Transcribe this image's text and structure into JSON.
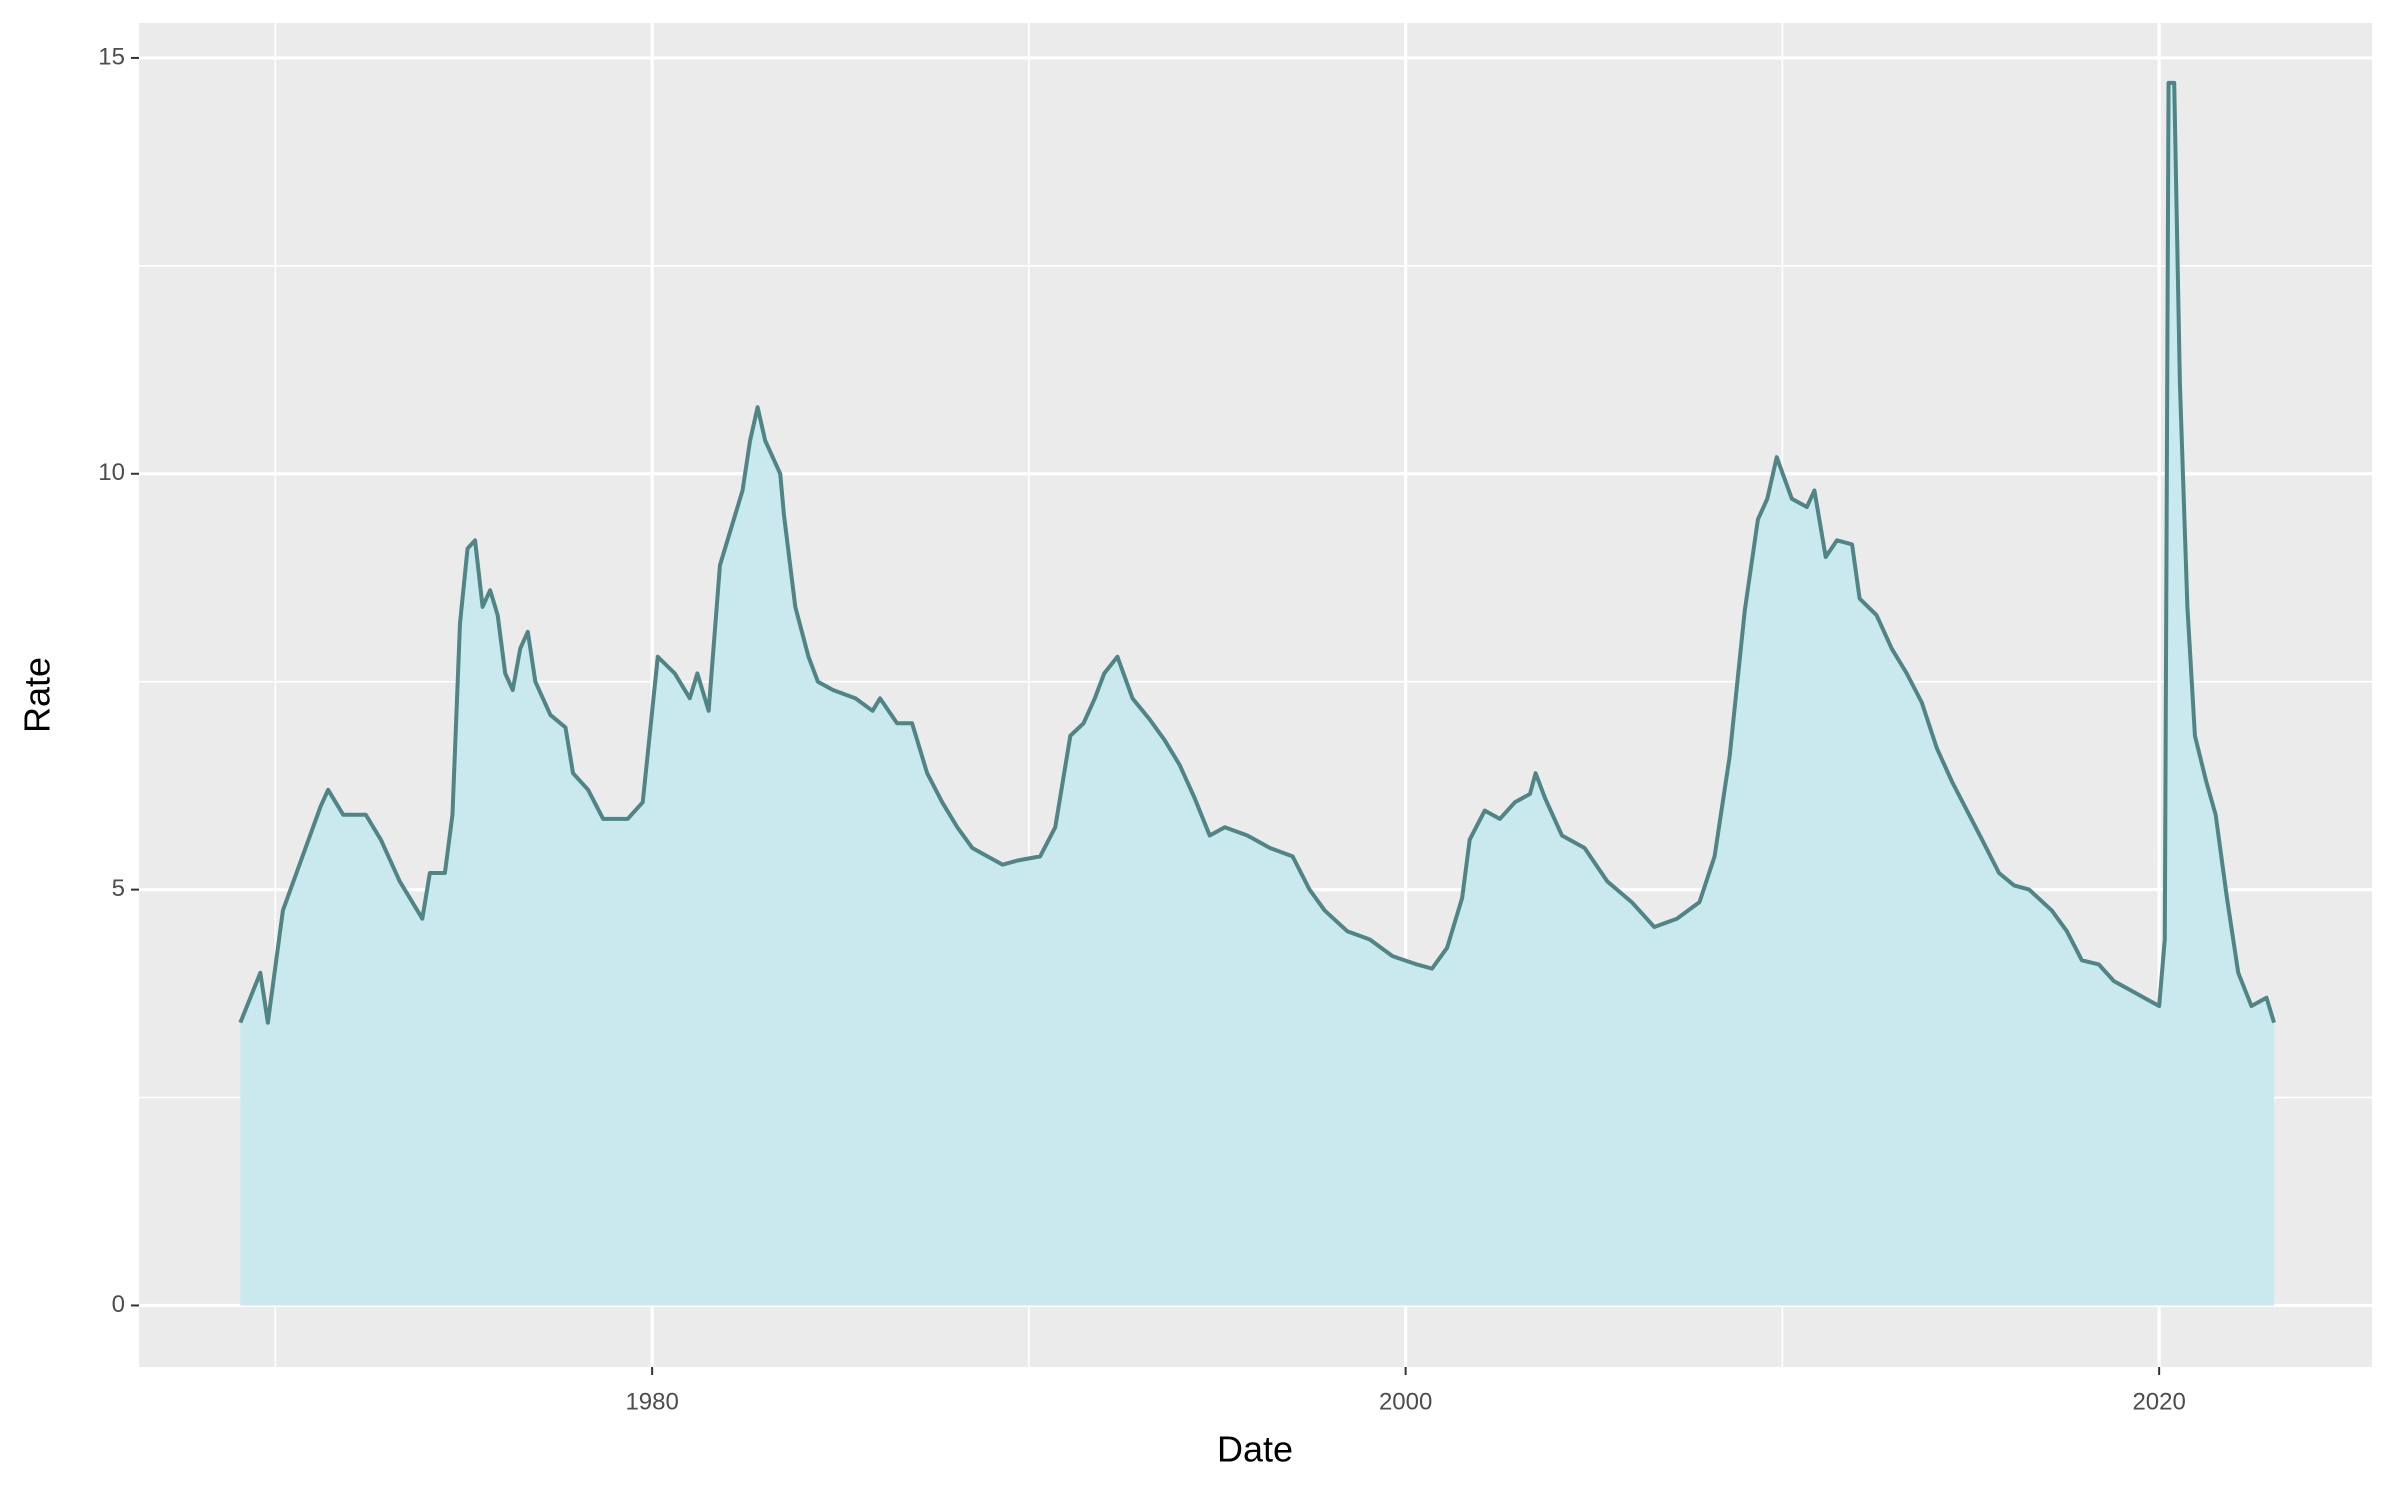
{
  "chart_data": {
    "type": "area",
    "x_label": "Date",
    "y_label": "Rate",
    "x": [
      1969.07,
      1969.6,
      1969.8,
      1970.2,
      1970.4,
      1970.8,
      1971.2,
      1971.4,
      1971.8,
      1972.4,
      1972.8,
      1973.3,
      1973.9,
      1974.1,
      1974.5,
      1974.7,
      1974.9,
      1975.1,
      1975.3,
      1975.5,
      1975.7,
      1975.9,
      1976.1,
      1976.3,
      1976.5,
      1976.7,
      1976.9,
      1977.3,
      1977.7,
      1977.9,
      1978.3,
      1978.7,
      1979.35,
      1979.75,
      1980.15,
      1980.6,
      1981.0,
      1981.2,
      1981.5,
      1981.8,
      1982.2,
      1982.4,
      1982.6,
      1982.8,
      1983.0,
      1983.4,
      1983.5,
      1983.8,
      1984.15,
      1984.4,
      1984.8,
      1985.4,
      1985.85,
      1986.05,
      1986.5,
      1986.9,
      1987.3,
      1987.7,
      1988.1,
      1988.5,
      1988.9,
      1989.3,
      1989.7,
      1990.3,
      1990.7,
      1991.1,
      1991.45,
      1991.75,
      1992.0,
      1992.35,
      1992.75,
      1993.2,
      1993.6,
      1994.0,
      1994.4,
      1994.8,
      1995.2,
      1995.8,
      1996.4,
      1997.0,
      1997.45,
      1997.85,
      1998.45,
      1999.05,
      1999.65,
      2000.3,
      2000.7,
      2001.1,
      2001.5,
      2001.7,
      2002.1,
      2002.5,
      2002.9,
      2003.3,
      2003.45,
      2003.7,
      2004.15,
      2004.75,
      2005.35,
      2006.0,
      2006.6,
      2007.2,
      2007.8,
      2008.2,
      2008.6,
      2009.0,
      2009.35,
      2009.6,
      2009.85,
      2010.25,
      2010.65,
      2010.85,
      2011.15,
      2011.45,
      2011.85,
      2012.05,
      2012.5,
      2012.9,
      2013.3,
      2013.7,
      2014.1,
      2014.5,
      2014.9,
      2015.3,
      2015.75,
      2016.15,
      2016.55,
      2017.15,
      2017.55,
      2017.95,
      2018.4,
      2018.8,
      2019.2,
      2019.6,
      2020.0,
      2020.15,
      2020.25,
      2020.4,
      2020.55,
      2020.75,
      2020.95,
      2021.25,
      2021.5,
      2021.8,
      2022.1,
      2022.45,
      2022.85,
      2023.05
    ],
    "series": [
      {
        "color": "#4f8585",
        "fill": "#c9e9ee",
        "values": [
          3.4,
          4.0,
          3.4,
          4.75,
          5.0,
          5.5,
          6.0,
          6.2,
          5.9,
          5.9,
          5.6,
          5.1,
          4.65,
          5.2,
          5.2,
          5.9,
          8.2,
          9.1,
          9.2,
          8.4,
          8.6,
          8.3,
          7.6,
          7.4,
          7.9,
          8.1,
          7.5,
          7.1,
          6.95,
          6.4,
          6.2,
          5.85,
          5.85,
          6.05,
          7.8,
          7.6,
          7.3,
          7.6,
          7.15,
          8.9,
          9.5,
          9.8,
          10.4,
          10.8,
          10.4,
          10.0,
          9.5,
          8.4,
          7.8,
          7.5,
          7.4,
          7.3,
          7.15,
          7.3,
          7.0,
          7.0,
          6.4,
          6.05,
          5.75,
          5.5,
          5.4,
          5.3,
          5.35,
          5.4,
          5.75,
          6.85,
          7.0,
          7.3,
          7.6,
          7.8,
          7.3,
          7.05,
          6.8,
          6.5,
          6.1,
          5.65,
          5.75,
          5.65,
          5.5,
          5.4,
          5.0,
          4.75,
          4.5,
          4.4,
          4.2,
          4.1,
          4.05,
          4.3,
          4.9,
          5.6,
          5.95,
          5.85,
          6.05,
          6.15,
          6.4,
          6.1,
          5.65,
          5.5,
          5.1,
          4.85,
          4.55,
          4.65,
          4.85,
          5.4,
          6.6,
          8.35,
          9.45,
          9.7,
          10.2,
          9.7,
          9.6,
          9.8,
          9.0,
          9.2,
          9.15,
          8.5,
          8.3,
          7.9,
          7.6,
          7.25,
          6.7,
          6.3,
          5.95,
          5.6,
          5.2,
          5.05,
          5.0,
          4.75,
          4.5,
          4.15,
          4.1,
          3.9,
          3.8,
          3.7,
          3.6,
          4.4,
          14.7,
          14.7,
          11.1,
          8.4,
          6.85,
          6.3,
          5.9,
          4.9,
          4.0,
          3.6,
          3.7,
          3.4
        ]
      }
    ],
    "xlim": [
      1966.38,
      2025.65
    ],
    "ylim": [
      -0.74,
      15.42
    ],
    "xticks": [
      1980,
      2000,
      2020
    ],
    "yticks": [
      0,
      5,
      10,
      15
    ],
    "x_minor_ticks": [
      1970,
      1990,
      2010
    ],
    "y_minor_ticks": [
      2.5,
      7.5,
      12.5
    ],
    "grid": true,
    "panel_color": "#ebebeb"
  }
}
